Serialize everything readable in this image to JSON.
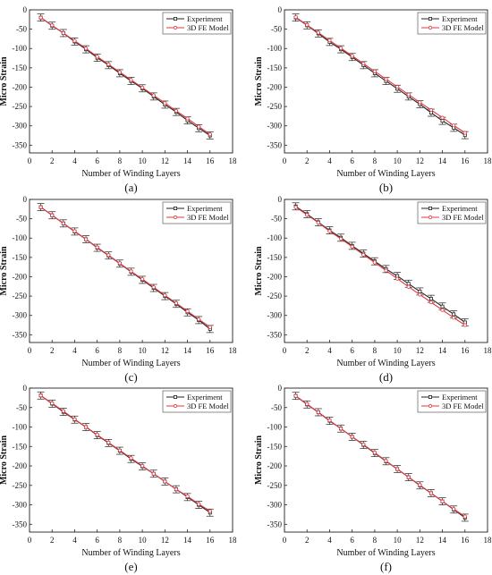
{
  "chart_data": [
    {
      "type": "line",
      "panel_label": "(a)",
      "xlabel": "Number of Winding Layers",
      "ylabel": "Micro Strain",
      "xlim": [
        0,
        18
      ],
      "ylim": [
        -370,
        0
      ],
      "xticks": [
        0,
        2,
        4,
        6,
        8,
        10,
        12,
        14,
        16,
        18
      ],
      "yticks": [
        0,
        -50,
        -100,
        -150,
        -200,
        -250,
        -300,
        -350
      ],
      "legend_position": "top-right",
      "x": [
        1,
        2,
        3,
        4,
        5,
        6,
        7,
        8,
        9,
        10,
        11,
        12,
        13,
        14,
        15,
        16
      ],
      "series": [
        {
          "name": "Experiment",
          "color": "#222222",
          "marker": "square",
          "values": [
            -20,
            -41,
            -60,
            -82,
            -102,
            -124,
            -143,
            -164,
            -184,
            -203,
            -224,
            -245,
            -264,
            -286,
            -306,
            -325
          ]
        },
        {
          "name": "3D FE Model",
          "color": "#e0383e",
          "marker": "circle",
          "values": [
            -20,
            -40,
            -60,
            -80,
            -100,
            -121,
            -141,
            -161,
            -181,
            -201,
            -221,
            -241,
            -261,
            -281,
            -302,
            -322
          ]
        }
      ]
    },
    {
      "type": "line",
      "panel_label": "(b)",
      "xlabel": "Number of Winding Layers",
      "ylabel": "Micro Strain",
      "xlim": [
        0,
        18
      ],
      "ylim": [
        -370,
        0
      ],
      "xticks": [
        0,
        2,
        4,
        6,
        8,
        10,
        12,
        14,
        16,
        18
      ],
      "yticks": [
        0,
        -50,
        -100,
        -150,
        -200,
        -250,
        -300,
        -350
      ],
      "legend_position": "top-right",
      "x": [
        1,
        2,
        3,
        4,
        5,
        6,
        7,
        8,
        9,
        10,
        11,
        12,
        13,
        14,
        15,
        16
      ],
      "series": [
        {
          "name": "Experiment",
          "color": "#222222",
          "marker": "square",
          "values": [
            -20,
            -40,
            -61,
            -83,
            -102,
            -122,
            -143,
            -164,
            -184,
            -204,
            -224,
            -244,
            -266,
            -287,
            -305,
            -324
          ]
        },
        {
          "name": "3D FE Model",
          "color": "#e0383e",
          "marker": "circle",
          "values": [
            -19,
            -39,
            -59,
            -79,
            -99,
            -119,
            -139,
            -159,
            -179,
            -199,
            -219,
            -239,
            -259,
            -279,
            -299,
            -318
          ]
        }
      ]
    },
    {
      "type": "line",
      "panel_label": "(c)",
      "xlabel": "Number of Winding Layers",
      "ylabel": "Micro Strain",
      "xlim": [
        0,
        18
      ],
      "ylim": [
        -370,
        0
      ],
      "xticks": [
        0,
        2,
        4,
        6,
        8,
        10,
        12,
        14,
        16,
        18
      ],
      "yticks": [
        0,
        -50,
        -100,
        -150,
        -200,
        -250,
        -300,
        -350
      ],
      "legend_position": "top-right",
      "x": [
        1,
        2,
        3,
        4,
        5,
        6,
        7,
        8,
        9,
        10,
        11,
        12,
        13,
        14,
        15,
        16
      ],
      "series": [
        {
          "name": "Experiment",
          "color": "#222222",
          "marker": "square",
          "values": [
            -20,
            -41,
            -62,
            -83,
            -103,
            -125,
            -145,
            -166,
            -187,
            -208,
            -229,
            -250,
            -270,
            -292,
            -312,
            -335
          ]
        },
        {
          "name": "3D FE Model",
          "color": "#e0383e",
          "marker": "circle",
          "values": [
            -20,
            -41,
            -62,
            -82,
            -103,
            -124,
            -144,
            -165,
            -186,
            -206,
            -227,
            -248,
            -268,
            -289,
            -310,
            -330
          ]
        }
      ]
    },
    {
      "type": "line",
      "panel_label": "(d)",
      "xlabel": "Number of Winding Layers",
      "ylabel": "Micro Strain",
      "xlim": [
        0,
        18
      ],
      "ylim": [
        -370,
        0
      ],
      "xticks": [
        0,
        2,
        4,
        6,
        8,
        10,
        12,
        14,
        16,
        18
      ],
      "yticks": [
        0,
        -50,
        -100,
        -150,
        -200,
        -250,
        -300,
        -350
      ],
      "legend_position": "top-right",
      "x": [
        1,
        2,
        3,
        4,
        5,
        6,
        7,
        8,
        9,
        10,
        11,
        12,
        13,
        14,
        15,
        16
      ],
      "series": [
        {
          "name": "Experiment",
          "color": "#222222",
          "marker": "square",
          "values": [
            -18,
            -38,
            -59,
            -80,
            -99,
            -120,
            -140,
            -160,
            -180,
            -198,
            -218,
            -238,
            -257,
            -277,
            -297,
            -318
          ]
        },
        {
          "name": "3D FE Model",
          "color": "#e0383e",
          "marker": "circle",
          "values": [
            -20,
            -40,
            -60,
            -82,
            -102,
            -122,
            -143,
            -163,
            -184,
            -205,
            -226,
            -246,
            -266,
            -286,
            -306,
            -325
          ]
        }
      ]
    },
    {
      "type": "line",
      "panel_label": "(e)",
      "xlabel": "Number of  Winding Layers",
      "ylabel": "Micro Strain",
      "xlim": [
        0,
        18
      ],
      "ylim": [
        -370,
        0
      ],
      "xticks": [
        0,
        2,
        4,
        6,
        8,
        10,
        12,
        14,
        16,
        18
      ],
      "yticks": [
        0,
        -50,
        -100,
        -150,
        -200,
        -250,
        -300,
        -350
      ],
      "legend_position": "top-right",
      "x": [
        1,
        2,
        3,
        4,
        5,
        6,
        7,
        8,
        9,
        10,
        11,
        12,
        13,
        14,
        15,
        16
      ],
      "series": [
        {
          "name": "Experiment",
          "color": "#222222",
          "marker": "square",
          "values": [
            -19,
            -40,
            -61,
            -81,
            -100,
            -121,
            -141,
            -161,
            -182,
            -201,
            -220,
            -240,
            -260,
            -280,
            -300,
            -320
          ]
        },
        {
          "name": "3D FE Model",
          "color": "#e0383e",
          "marker": "circle",
          "values": [
            -19,
            -39,
            -59,
            -80,
            -100,
            -120,
            -140,
            -160,
            -180,
            -200,
            -220,
            -240,
            -260,
            -278,
            -298,
            -316
          ]
        }
      ]
    },
    {
      "type": "line",
      "panel_label": "(f)",
      "xlabel": "Number of Winding Layers",
      "ylabel": "Micro Strain",
      "xlim": [
        0,
        18
      ],
      "ylim": [
        -370,
        0
      ],
      "xticks": [
        0,
        2,
        4,
        6,
        8,
        10,
        12,
        14,
        16,
        18
      ],
      "yticks": [
        0,
        -50,
        -100,
        -150,
        -200,
        -250,
        -300,
        -350
      ],
      "legend_position": "top-right",
      "x": [
        1,
        2,
        3,
        4,
        5,
        6,
        7,
        8,
        9,
        10,
        11,
        12,
        13,
        14,
        15,
        16
      ],
      "series": [
        {
          "name": "Experiment",
          "color": "#222222",
          "marker": "square",
          "values": [
            -20,
            -42,
            -62,
            -84,
            -104,
            -125,
            -146,
            -167,
            -188,
            -208,
            -229,
            -250,
            -270,
            -291,
            -312,
            -333
          ]
        },
        {
          "name": "3D FE Model",
          "color": "#e0383e",
          "marker": "circle",
          "values": [
            -20,
            -41,
            -62,
            -83,
            -104,
            -125,
            -145,
            -166,
            -187,
            -208,
            -229,
            -249,
            -270,
            -291,
            -311,
            -330
          ]
        }
      ]
    }
  ]
}
